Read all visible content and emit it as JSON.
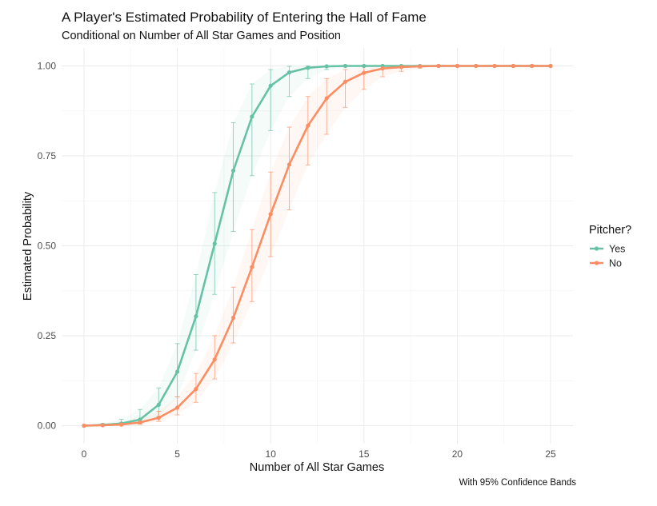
{
  "chart_data": {
    "type": "line",
    "title": "A Player's Estimated Probability of Entering the Hall of Fame",
    "subtitle": "Conditional on Number of All Star Games and Position",
    "xlabel": "Number of All Star Games",
    "ylabel": "Estimated Probability",
    "caption": "With 95% Confidence Bands",
    "xlim": [
      -1.2,
      26.2
    ],
    "ylim": [
      -0.05,
      1.05
    ],
    "x_ticks": [
      0,
      5,
      10,
      15,
      20,
      25
    ],
    "x_tick_labels": [
      "0",
      "5",
      "10",
      "15",
      "20",
      "25"
    ],
    "y_ticks": [
      0,
      0.25,
      0.5,
      0.75,
      1.0
    ],
    "y_tick_labels": [
      "0.00",
      "0.25",
      "0.50",
      "0.75",
      "1.00"
    ],
    "grid": true,
    "legend": {
      "title": "Pitcher?",
      "position": "right"
    },
    "x": [
      0,
      1,
      2,
      3,
      4,
      5,
      6,
      7,
      8,
      9,
      10,
      11,
      12,
      13,
      14,
      15,
      16,
      17,
      18,
      19,
      20,
      21,
      22,
      23,
      24,
      25
    ],
    "series": [
      {
        "name": "Yes",
        "color": "#66c2a5",
        "values": [
          0.0,
          0.002,
          0.006,
          0.017,
          0.058,
          0.15,
          0.304,
          0.506,
          0.709,
          0.859,
          0.945,
          0.982,
          0.995,
          0.999,
          1.0,
          1.0,
          1.0,
          1.0,
          1.0,
          1.0,
          1.0,
          1.0,
          1.0,
          1.0,
          1.0,
          1.0
        ],
        "lower": [
          0.0,
          0.0,
          0.001,
          0.005,
          0.025,
          0.08,
          0.21,
          0.365,
          0.54,
          0.695,
          0.82,
          0.915,
          0.965,
          0.99,
          0.997,
          0.999,
          1.0,
          1.0,
          1.0,
          1.0,
          1.0,
          1.0,
          1.0,
          1.0,
          1.0,
          1.0
        ],
        "upper": [
          0.001,
          0.006,
          0.018,
          0.045,
          0.105,
          0.228,
          0.42,
          0.648,
          0.842,
          0.95,
          0.99,
          0.999,
          1.0,
          1.0,
          1.0,
          1.0,
          1.0,
          1.0,
          1.0,
          1.0,
          1.0,
          1.0,
          1.0,
          1.0,
          1.0,
          1.0
        ]
      },
      {
        "name": "No",
        "color": "#fc8d62",
        "values": [
          0.0,
          0.001,
          0.003,
          0.009,
          0.022,
          0.05,
          0.102,
          0.184,
          0.3,
          0.441,
          0.588,
          0.726,
          0.834,
          0.91,
          0.956,
          0.981,
          0.993,
          0.997,
          0.999,
          1.0,
          1.0,
          1.0,
          1.0,
          1.0,
          1.0,
          1.0
        ],
        "lower": [
          0.0,
          0.0,
          0.001,
          0.004,
          0.012,
          0.03,
          0.065,
          0.13,
          0.23,
          0.345,
          0.47,
          0.6,
          0.725,
          0.81,
          0.885,
          0.935,
          0.97,
          0.985,
          0.994,
          0.998,
          1.0,
          1.0,
          1.0,
          1.0,
          1.0,
          1.0
        ],
        "upper": [
          0.001,
          0.003,
          0.008,
          0.018,
          0.04,
          0.08,
          0.145,
          0.25,
          0.385,
          0.545,
          0.705,
          0.83,
          0.915,
          0.965,
          0.99,
          0.998,
          1.0,
          1.0,
          1.0,
          1.0,
          1.0,
          1.0,
          1.0,
          1.0,
          1.0,
          1.0
        ]
      }
    ]
  }
}
